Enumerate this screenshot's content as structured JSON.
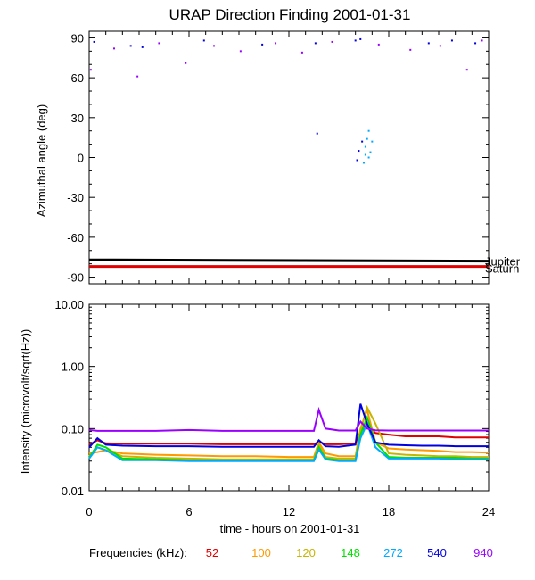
{
  "chart_data": [
    {
      "type": "scatter",
      "title": "URAP Direction Finding  2001-01-31",
      "xlabel": "",
      "ylabel": "Azimuthal angle (deg)",
      "xlim": [
        0,
        24
      ],
      "ylim": [
        -95,
        95
      ],
      "xticks": [
        0,
        6,
        12,
        18,
        24
      ],
      "yticks": [
        -90,
        -60,
        -30,
        0,
        30,
        60,
        90
      ],
      "ytick_labels": [
        "-90",
        "-60",
        "-30",
        "0",
        "30",
        "60",
        "90"
      ],
      "reference_lines": [
        {
          "name": "Jupiter",
          "color": "#000000",
          "x": [
            0,
            24
          ],
          "y": [
            -77,
            -78
          ]
        },
        {
          "name": "Saturn",
          "color": "#e00000",
          "x": [
            0,
            24
          ],
          "y": [
            -82,
            -82
          ]
        }
      ],
      "scatter_clusters": [
        {
          "color": "#0000e0",
          "x": [
            0.3,
            2.5,
            3.2,
            6.9,
            10.4,
            13.6,
            16.0,
            16.3,
            20.4,
            23.2,
            21.8,
            16.2,
            16.4,
            16.1,
            13.7
          ],
          "y": [
            87,
            84,
            83,
            88,
            85,
            86,
            88,
            89,
            86,
            86,
            88,
            5,
            12,
            -2,
            18
          ]
        },
        {
          "color": "#9900ff",
          "x": [
            1.5,
            4.2,
            5.8,
            7.5,
            9.1,
            11.2,
            12.8,
            14.6,
            17.4,
            19.3,
            21.1,
            22.7,
            23.6,
            0.1,
            2.9
          ],
          "y": [
            82,
            86,
            71,
            84,
            80,
            86,
            79,
            87,
            85,
            81,
            84,
            66,
            88,
            66,
            61
          ]
        },
        {
          "color": "#00aaff",
          "x": [
            16.6,
            16.8,
            16.7,
            16.9,
            16.5,
            16.8,
            17.0,
            16.6
          ],
          "y": [
            8,
            0,
            14,
            4,
            -4,
            20,
            12,
            2
          ]
        }
      ],
      "side_labels": [
        "Jupiter",
        "Saturn"
      ]
    },
    {
      "type": "line",
      "xlabel": "time - hours on 2001-01-31",
      "ylabel": "Intensity (microvolt/sqrt(Hz))",
      "xlim": [
        0,
        24
      ],
      "ylim": [
        0.01,
        10
      ],
      "yscale": "log",
      "xticks": [
        0,
        6,
        12,
        18,
        24
      ],
      "xtick_labels": [
        "0",
        "6",
        "12",
        "18",
        "24"
      ],
      "yticks": [
        0.01,
        0.1,
        1,
        10
      ],
      "ytick_labels": [
        "0.01",
        "0.10",
        "1.00",
        "10.00"
      ],
      "x": [
        0,
        0.5,
        1,
        2,
        4,
        6,
        8,
        10,
        12,
        13.5,
        13.8,
        14.2,
        15,
        16,
        16.3,
        16.7,
        17.2,
        18,
        19,
        20,
        21,
        22,
        23,
        24
      ],
      "series": [
        {
          "name": "52",
          "color": "#e00000",
          "values": [
            0.055,
            0.065,
            0.058,
            0.057,
            0.057,
            0.057,
            0.056,
            0.056,
            0.056,
            0.056,
            0.062,
            0.056,
            0.056,
            0.058,
            0.09,
            0.11,
            0.085,
            0.08,
            0.075,
            0.075,
            0.075,
            0.072,
            0.072,
            0.072
          ]
        },
        {
          "name": "100",
          "color": "#ff9900",
          "values": [
            0.04,
            0.042,
            0.045,
            0.04,
            0.038,
            0.037,
            0.036,
            0.036,
            0.035,
            0.035,
            0.06,
            0.04,
            0.036,
            0.036,
            0.1,
            0.2,
            0.06,
            0.048,
            0.046,
            0.045,
            0.044,
            0.042,
            0.042,
            0.041
          ]
        },
        {
          "name": "120",
          "color": "#c8b400",
          "values": [
            0.036,
            0.05,
            0.045,
            0.036,
            0.034,
            0.033,
            0.032,
            0.032,
            0.032,
            0.032,
            0.055,
            0.035,
            0.033,
            0.033,
            0.09,
            0.22,
            0.12,
            0.04,
            0.038,
            0.037,
            0.036,
            0.036,
            0.035,
            0.035
          ]
        },
        {
          "name": "148",
          "color": "#00e000",
          "values": [
            0.034,
            0.055,
            0.05,
            0.033,
            0.032,
            0.031,
            0.031,
            0.031,
            0.031,
            0.031,
            0.05,
            0.033,
            0.031,
            0.031,
            0.08,
            0.15,
            0.06,
            0.035,
            0.034,
            0.034,
            0.034,
            0.034,
            0.033,
            0.033
          ]
        },
        {
          "name": "272",
          "color": "#00aaff",
          "values": [
            0.033,
            0.05,
            0.045,
            0.031,
            0.031,
            0.03,
            0.03,
            0.03,
            0.03,
            0.03,
            0.046,
            0.032,
            0.03,
            0.03,
            0.07,
            0.12,
            0.05,
            0.033,
            0.033,
            0.033,
            0.033,
            0.032,
            0.032,
            0.032
          ]
        },
        {
          "name": "540",
          "color": "#0000e0",
          "values": [
            0.05,
            0.07,
            0.055,
            0.053,
            0.052,
            0.052,
            0.051,
            0.051,
            0.051,
            0.051,
            0.065,
            0.052,
            0.051,
            0.055,
            0.25,
            0.12,
            0.06,
            0.055,
            0.054,
            0.053,
            0.053,
            0.052,
            0.052,
            0.052
          ]
        },
        {
          "name": "940",
          "color": "#9900ff",
          "values": [
            0.095,
            0.092,
            0.092,
            0.092,
            0.092,
            0.095,
            0.092,
            0.092,
            0.092,
            0.092,
            0.2,
            0.1,
            0.093,
            0.093,
            0.13,
            0.1,
            0.094,
            0.093,
            0.093,
            0.093,
            0.093,
            0.093,
            0.093,
            0.093
          ]
        }
      ],
      "legend_prefix": "Frequencies (kHz):",
      "legend_placement": "bottom"
    }
  ]
}
